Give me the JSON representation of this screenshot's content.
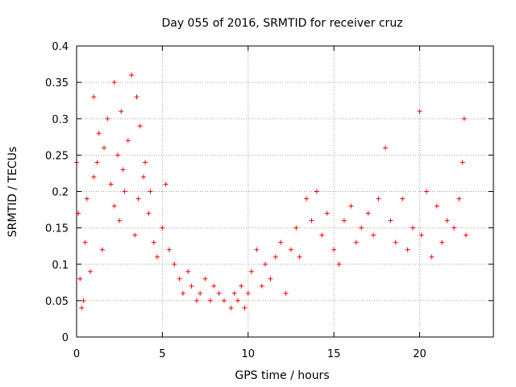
{
  "chart_data": {
    "type": "scatter",
    "title": "Day 055 of 2016, SRMTID for receiver cruz",
    "xlabel": "GPS time / hours",
    "ylabel": "SRMTID / TECUs",
    "xlim": [
      0,
      24.3
    ],
    "ylim": [
      0,
      0.4
    ],
    "xticks": [
      "0",
      "5",
      "10",
      "15",
      "20"
    ],
    "xtick_values": [
      0,
      5,
      10,
      15,
      20
    ],
    "yticks": [
      "0",
      "0.05",
      "0.1",
      "0.15",
      "0.2",
      "0.25",
      "0.3",
      "0.35",
      "0.4"
    ],
    "ytick_values": [
      0,
      0.05,
      0.1,
      0.15,
      0.2,
      0.25,
      0.3,
      0.35,
      0.4
    ],
    "grid": true,
    "marker": "+",
    "color": "#ff0000",
    "series": [
      {
        "x": [
          0.0,
          0.1,
          0.2,
          0.3,
          0.4,
          0.5,
          0.6,
          0.8,
          1.0,
          1.0,
          1.2,
          1.3,
          1.5,
          1.6,
          1.8,
          2.0,
          2.2,
          2.2,
          2.4,
          2.5,
          2.6,
          2.7,
          2.8,
          3.0,
          3.2,
          3.4,
          3.5,
          3.6,
          3.7,
          3.9,
          4.0,
          4.2,
          4.3,
          4.5,
          4.7,
          5.0,
          5.2,
          5.4,
          5.7,
          6.0,
          6.2,
          6.5,
          6.7,
          7.0,
          7.2,
          7.5,
          7.8,
          8.0,
          8.3,
          8.6,
          9.0,
          9.2,
          9.4,
          9.6,
          9.8,
          10.0,
          10.2,
          10.5,
          10.8,
          11.0,
          11.3,
          11.6,
          11.9,
          12.2,
          12.5,
          12.8,
          13.0,
          13.4,
          13.7,
          14.0,
          14.3,
          14.6,
          15.0,
          15.3,
          15.6,
          16.0,
          16.3,
          16.6,
          17.0,
          17.3,
          17.6,
          18.0,
          18.3,
          18.6,
          19.0,
          19.3,
          19.6,
          20.0,
          20.1,
          20.4,
          20.7,
          21.0,
          21.3,
          21.6,
          22.0,
          22.3,
          22.5,
          22.6,
          22.7
        ],
        "y": [
          0.24,
          0.17,
          0.08,
          0.04,
          0.05,
          0.13,
          0.19,
          0.09,
          0.33,
          0.22,
          0.24,
          0.28,
          0.12,
          0.26,
          0.3,
          0.21,
          0.35,
          0.18,
          0.25,
          0.16,
          0.31,
          0.23,
          0.2,
          0.27,
          0.36,
          0.14,
          0.33,
          0.19,
          0.29,
          0.22,
          0.24,
          0.17,
          0.2,
          0.13,
          0.11,
          0.15,
          0.21,
          0.12,
          0.1,
          0.08,
          0.06,
          0.09,
          0.07,
          0.05,
          0.06,
          0.08,
          0.05,
          0.07,
          0.06,
          0.05,
          0.04,
          0.06,
          0.05,
          0.07,
          0.04,
          0.06,
          0.09,
          0.12,
          0.07,
          0.1,
          0.08,
          0.11,
          0.13,
          0.06,
          0.12,
          0.15,
          0.11,
          0.19,
          0.16,
          0.2,
          0.14,
          0.17,
          0.12,
          0.1,
          0.16,
          0.18,
          0.13,
          0.15,
          0.17,
          0.14,
          0.19,
          0.26,
          0.16,
          0.13,
          0.19,
          0.12,
          0.15,
          0.31,
          0.14,
          0.2,
          0.11,
          0.18,
          0.13,
          0.16,
          0.15,
          0.19,
          0.24,
          0.3,
          0.14
        ]
      }
    ]
  }
}
